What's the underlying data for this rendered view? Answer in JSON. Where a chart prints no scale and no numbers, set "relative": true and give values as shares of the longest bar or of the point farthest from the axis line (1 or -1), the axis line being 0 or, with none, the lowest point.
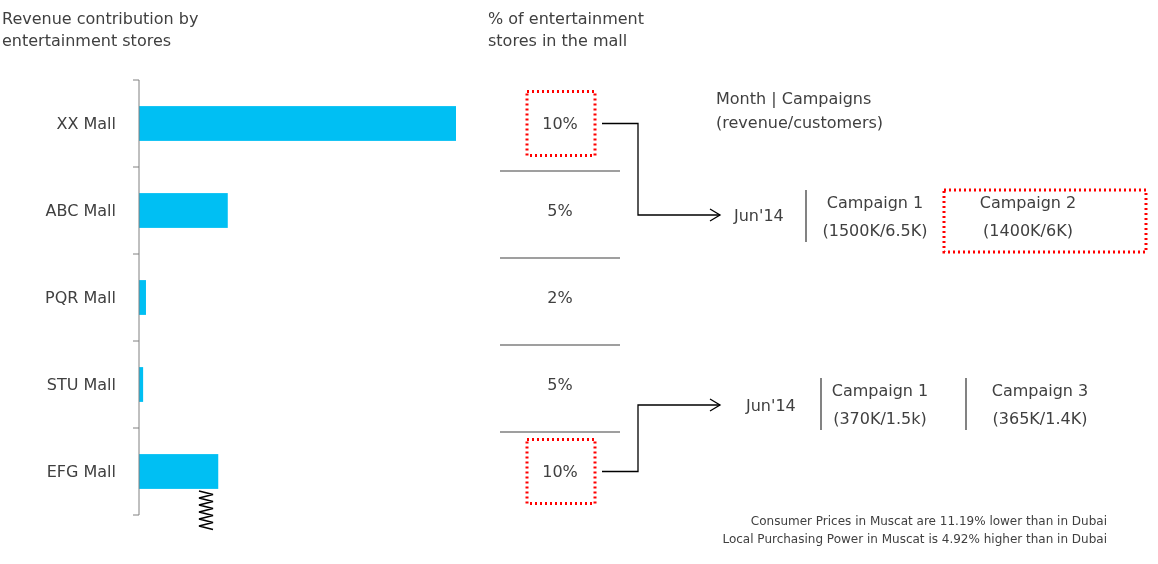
{
  "chart_data": {
    "type": "bar",
    "orientation": "horizontal",
    "relative": true,
    "title": "Revenue contribution by entertainment stores",
    "categories": [
      "XX Mall",
      "ABC Mall",
      "PQR Mall",
      "STU Mall",
      "EFG Mall"
    ],
    "values": [
      1,
      0.28,
      0.022,
      0.013,
      0.25
    ],
    "color": "#00bff3",
    "annotations": [
      "% of entertainment stores in the mall",
      "10%",
      "5%",
      "2%",
      "5%",
      "10%",
      "Month | Campaigns",
      "(revenue/customers)",
      "Jun'14",
      "Campaign 1",
      "(1500K/6.5K)",
      "Campaign 2",
      "(1400K/6K)",
      "Jun'14",
      "Campaign 1",
      "(370K/1.5k)",
      "Campaign 3",
      "(365K/1.4K)",
      "Consumer Prices in Muscat are 11.19% lower than in Dubai",
      "Local Purchasing Power in Muscat is 4.92% higher than in Dubai"
    ]
  }
}
